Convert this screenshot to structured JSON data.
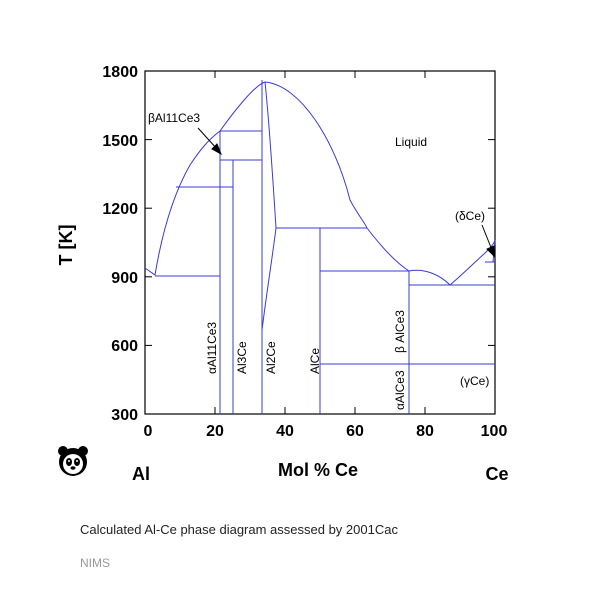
{
  "colors": {
    "curve": "#3b3bd0",
    "axis": "#000000"
  },
  "axes": {
    "x_ticks": [
      "0",
      "20",
      "40",
      "60",
      "80",
      "100"
    ],
    "y_ticks": [
      "300",
      "600",
      "900",
      "1200",
      "1500",
      "1800"
    ],
    "x_title": "Mol % Ce",
    "y_title": "T [K]",
    "left_element": "Al",
    "right_element": "Ce"
  },
  "labels": {
    "liquid": "Liquid",
    "delta_ce": "(δCe)",
    "gamma_ce": "(γCe)",
    "beta_al11ce3": "βAl11Ce3",
    "alpha_al11ce3": "αAl11Ce3",
    "al3ce": "Al3Ce",
    "al2ce": "Al2Ce",
    "alce": "AlCe",
    "beta_alce3": "β AlCe3",
    "alpha_alce3": "αAlCe3"
  },
  "logo": {
    "icon": "panda-icon"
  },
  "caption": "Calculated Al-Ce phase diagram assessed by 2001Cac",
  "source": "NIMS"
}
